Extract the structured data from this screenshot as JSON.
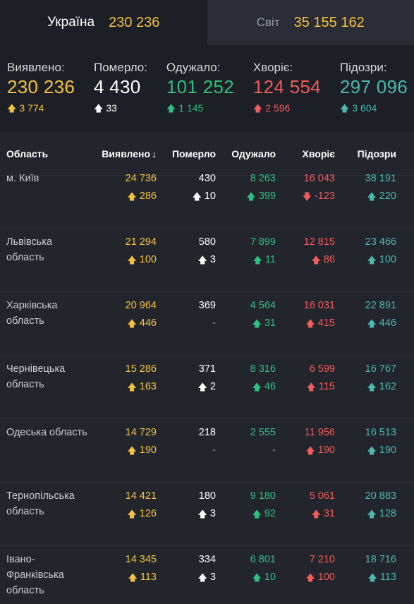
{
  "tabs": [
    {
      "name": "Україна",
      "total": "230 236"
    },
    {
      "name": "Світ",
      "total": "35 155 162"
    }
  ],
  "summary": [
    {
      "label": "Виявлено:",
      "value": "230 236",
      "delta": "3 774",
      "color": "#f5c041",
      "arrow": "up"
    },
    {
      "label": "Померло:",
      "value": "4 430",
      "delta": "33",
      "color": "#ffffff",
      "arrow": "up"
    },
    {
      "label": "Одужало:",
      "value": "101 252",
      "delta": "1 145",
      "color": "#2fbf7c",
      "arrow": "up"
    },
    {
      "label": "Хворіє:",
      "value": "124 554",
      "delta": "2 596",
      "color": "#f05b5b",
      "arrow": "up"
    },
    {
      "label": "Підозри:",
      "value": "297 096",
      "delta": "3 604",
      "color": "#4bb7b0",
      "arrow": "up"
    }
  ],
  "table": {
    "headers": {
      "region": "Область",
      "confirmed": "Виявлено",
      "sort_icon": "↓",
      "deaths": "Померло",
      "recovered": "Одужало",
      "sick": "Хворіє",
      "suspected": "Підозри"
    },
    "rows": [
      {
        "region": "м. Київ",
        "confirmed": "24 736",
        "confirmed_d": "286",
        "deaths": "430",
        "deaths_d": "10",
        "recovered": "8 263",
        "recovered_d": "399",
        "sick": "16 043",
        "sick_d": "-123",
        "suspected": "38 191",
        "suspected_d": "220"
      },
      {
        "region": "Львівська область",
        "confirmed": "21 294",
        "confirmed_d": "100",
        "deaths": "580",
        "deaths_d": "3",
        "recovered": "7 899",
        "recovered_d": "11",
        "sick": "12 815",
        "sick_d": "86",
        "suspected": "23 466",
        "suspected_d": "100"
      },
      {
        "region": "Харківська область",
        "confirmed": "20 964",
        "confirmed_d": "446",
        "deaths": "369",
        "deaths_d": "-",
        "recovered": "4 564",
        "recovered_d": "31",
        "sick": "16 031",
        "sick_d": "415",
        "suspected": "22 891",
        "suspected_d": "446"
      },
      {
        "region": "Чернівецька область",
        "confirmed": "15 286",
        "confirmed_d": "163",
        "deaths": "371",
        "deaths_d": "2",
        "recovered": "8 316",
        "recovered_d": "46",
        "sick": "6 599",
        "sick_d": "115",
        "suspected": "16 767",
        "suspected_d": "162"
      },
      {
        "region": "Одеська область",
        "confirmed": "14 729",
        "confirmed_d": "190",
        "deaths": "218",
        "deaths_d": "-",
        "recovered": "2 555",
        "recovered_d": "-",
        "sick": "11 956",
        "sick_d": "190",
        "suspected": "16 513",
        "suspected_d": "190"
      },
      {
        "region": "Тернопільська область",
        "confirmed": "14 421",
        "confirmed_d": "126",
        "deaths": "180",
        "deaths_d": "3",
        "recovered": "9 180",
        "recovered_d": "92",
        "sick": "5 061",
        "sick_d": "31",
        "suspected": "20 883",
        "suspected_d": "128"
      },
      {
        "region": "Івано-Франківська область",
        "confirmed": "14 345",
        "confirmed_d": "113",
        "deaths": "334",
        "deaths_d": "3",
        "recovered": "6 801",
        "recovered_d": "10",
        "sick": "7 210",
        "sick_d": "100",
        "suspected": "18 716",
        "suspected_d": "113"
      }
    ]
  },
  "colors": {
    "confirmed": "#f5c041",
    "deaths": "#ffffff",
    "recovered": "#2fbf7c",
    "sick": "#f05b5b",
    "suspected": "#4bb7b0"
  }
}
